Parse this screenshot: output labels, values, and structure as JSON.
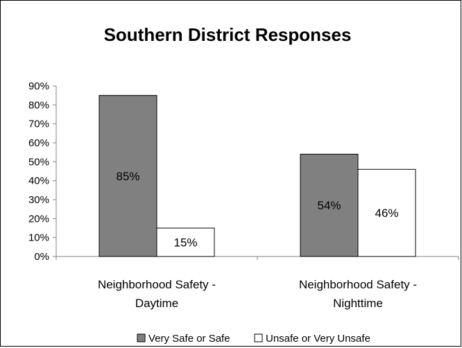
{
  "chart_data": {
    "type": "bar",
    "title": "Southern District Responses",
    "categories": [
      "Neighborhood Safety - Daytime",
      "Neighborhood Safety - Nighttime"
    ],
    "category_lines": [
      [
        "Neighborhood Safety -",
        "Daytime"
      ],
      [
        "Neighborhood Safety -",
        "Nighttime"
      ]
    ],
    "series": [
      {
        "name": "Very Safe or Safe",
        "values": [
          85,
          54
        ],
        "labels": [
          "85%",
          "54%"
        ],
        "color": "#808080"
      },
      {
        "name": "Unsafe or Very Unsafe",
        "values": [
          15,
          46
        ],
        "labels": [
          "15%",
          "46%"
        ],
        "color": "#ffffff"
      }
    ],
    "ylim": [
      0,
      90
    ],
    "yticks": [
      "0%",
      "10%",
      "20%",
      "30%",
      "40%",
      "50%",
      "60%",
      "70%",
      "80%",
      "90%"
    ],
    "grid": false,
    "legend_position": "bottom",
    "xlabel": "",
    "ylabel": ""
  }
}
